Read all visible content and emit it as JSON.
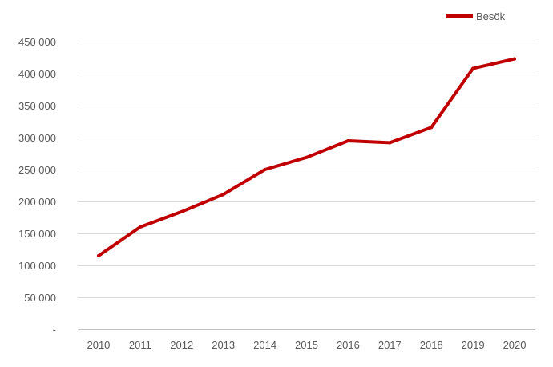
{
  "chart_data": {
    "type": "line",
    "title": "",
    "xlabel": "",
    "ylabel": "",
    "categories": [
      "2010",
      "2011",
      "2012",
      "2013",
      "2014",
      "2015",
      "2016",
      "2017",
      "2018",
      "2019",
      "2020"
    ],
    "series": [
      {
        "name": "Besök",
        "color": "#c00000",
        "values": [
          115000,
          160000,
          184000,
          211000,
          250000,
          269000,
          295000,
          292000,
          316000,
          408000,
          423000
        ]
      }
    ],
    "ylim": [
      0,
      450000
    ],
    "yticks": [
      0,
      50000,
      100000,
      150000,
      200000,
      250000,
      300000,
      350000,
      400000,
      450000
    ],
    "ytick_labels": [
      "-",
      "50 000",
      "100 000",
      "150 000",
      "200 000",
      "250 000",
      "300 000",
      "350 000",
      "400 000",
      "450 000"
    ],
    "grid": true,
    "legend_position": "top-right"
  }
}
